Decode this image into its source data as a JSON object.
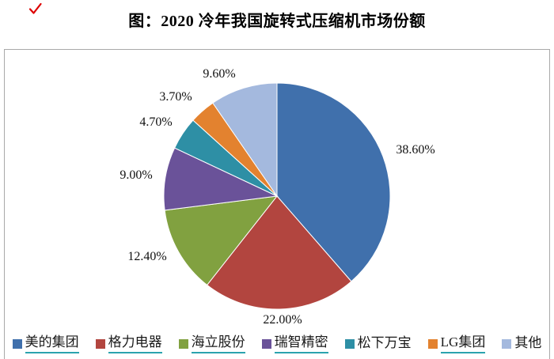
{
  "annotation": {
    "checkmark_color": "#dd0000"
  },
  "title": "图：2020 冷年我国旋转式压缩机市场份额",
  "chart_data": {
    "type": "pie",
    "title": "图：2020 冷年我国旋转式压缩机市场份额",
    "categories": [
      "美的集团",
      "格力电器",
      "海立股份",
      "瑞智精密",
      "松下万宝",
      "LG集团",
      "其他"
    ],
    "values": [
      38.6,
      22.0,
      12.4,
      9.0,
      4.7,
      3.7,
      9.6
    ],
    "labels": [
      "38.60%",
      "22.00%",
      "12.40%",
      "9.00%",
      "4.70%",
      "3.70%",
      "9.60%"
    ],
    "colors": [
      "#4070ac",
      "#b2453f",
      "#81a140",
      "#6a5299",
      "#2e8fa5",
      "#e3822f",
      "#a4b9de"
    ],
    "start_angle_deg": 0,
    "direction": "clockwise",
    "legend_position": "bottom",
    "legend": [
      {
        "label": "美的集团",
        "underlined": true
      },
      {
        "label": "格力电器",
        "underlined": true
      },
      {
        "label": "海立股份",
        "underlined": true
      },
      {
        "label": "瑞智精密",
        "underlined": true
      },
      {
        "label": "松下万宝",
        "underlined": false
      },
      {
        "label": "LG集团",
        "underlined": true
      },
      {
        "label": "其他",
        "underlined": false
      }
    ]
  }
}
